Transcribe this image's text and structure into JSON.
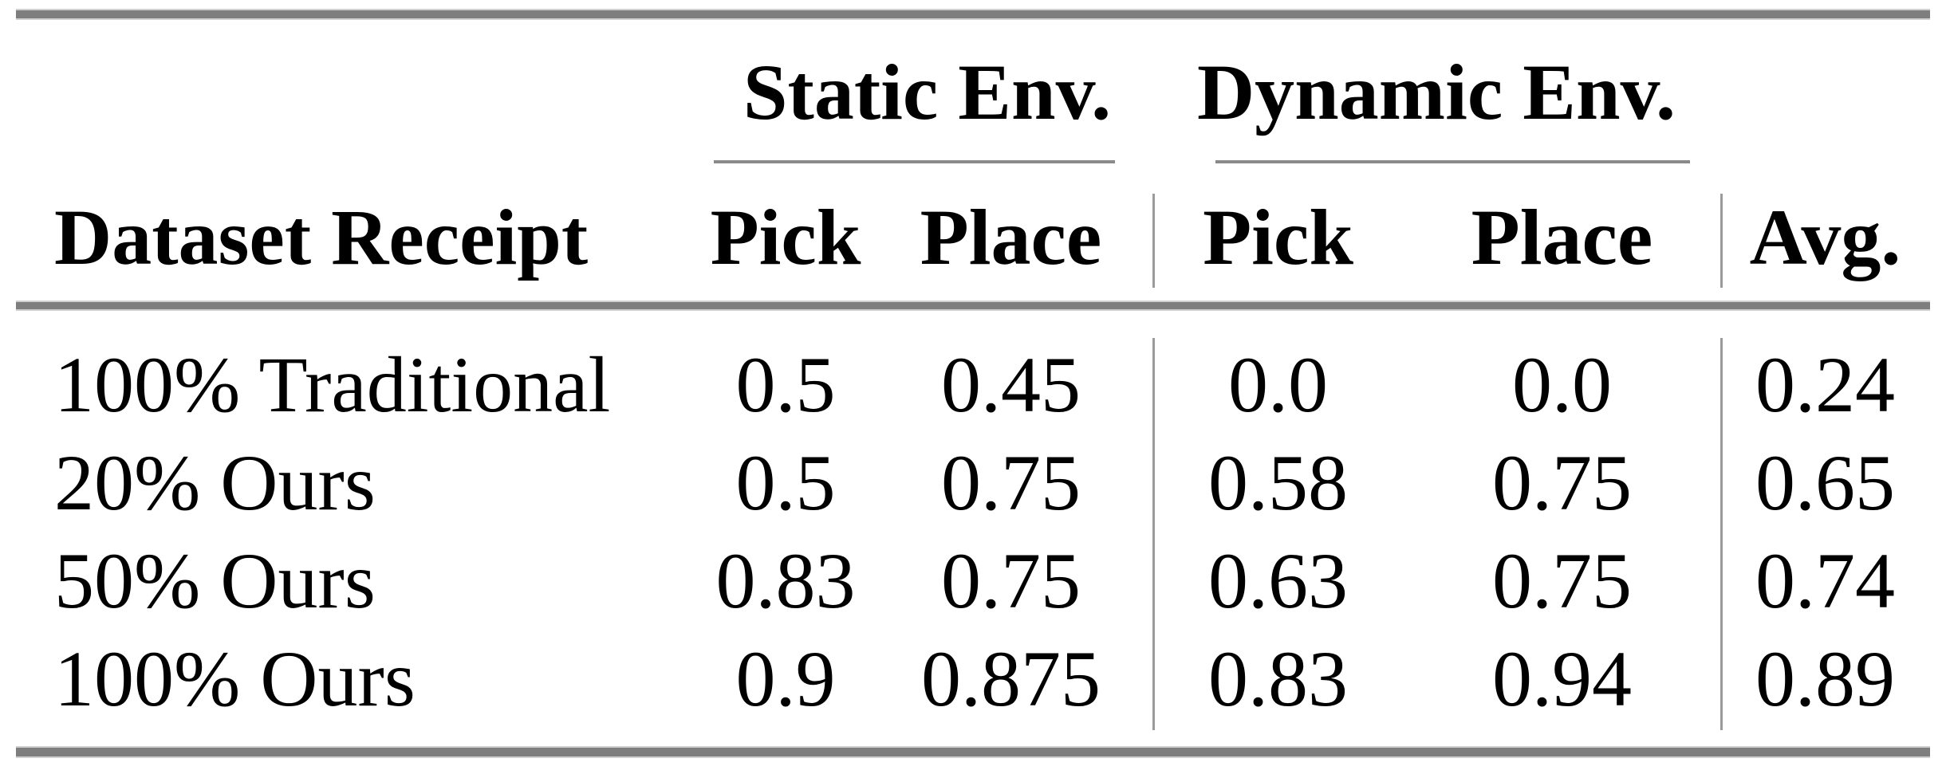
{
  "table": {
    "col_groups": [
      {
        "label": "Static Env."
      },
      {
        "label": "Dynamic Env."
      }
    ],
    "columns": [
      "Dataset Receipt",
      "Pick",
      "Place",
      "Pick",
      "Place",
      "Avg."
    ],
    "rows": [
      {
        "label": "100% Traditional",
        "values": [
          "0.5",
          "0.45",
          "0.0",
          "0.0",
          "0.24"
        ]
      },
      {
        "label": "20% Ours",
        "values": [
          "0.5",
          "0.75",
          "0.58",
          "0.75",
          "0.65"
        ]
      },
      {
        "label": "50% Ours",
        "values": [
          "0.83",
          "0.75",
          "0.63",
          "0.75",
          "0.74"
        ]
      },
      {
        "label": "100% Ours",
        "values": [
          "0.9",
          "0.875",
          "0.83",
          "0.94",
          "0.89"
        ]
      }
    ]
  },
  "chart_data": {
    "type": "table",
    "title": "",
    "column_groups": [
      "Static Env.",
      "Dynamic Env."
    ],
    "columns": [
      "Dataset Receipt",
      "Static Pick",
      "Static Place",
      "Dynamic Pick",
      "Dynamic Place",
      "Avg."
    ],
    "rows": [
      [
        "100% Traditional",
        0.5,
        0.45,
        0.0,
        0.0,
        0.24
      ],
      [
        "20% Ours",
        0.5,
        0.75,
        0.58,
        0.75,
        0.65
      ],
      [
        "50% Ours",
        0.83,
        0.75,
        0.63,
        0.75,
        0.74
      ],
      [
        "100% Ours",
        0.9,
        0.875,
        0.83,
        0.94,
        0.89
      ]
    ]
  },
  "colors": {
    "thick_rule": "#7e7e7e",
    "thin_rule": "#8a8a8a",
    "vertical_rule": "#9b9b9b",
    "text": "#000000",
    "background": "#ffffff"
  }
}
